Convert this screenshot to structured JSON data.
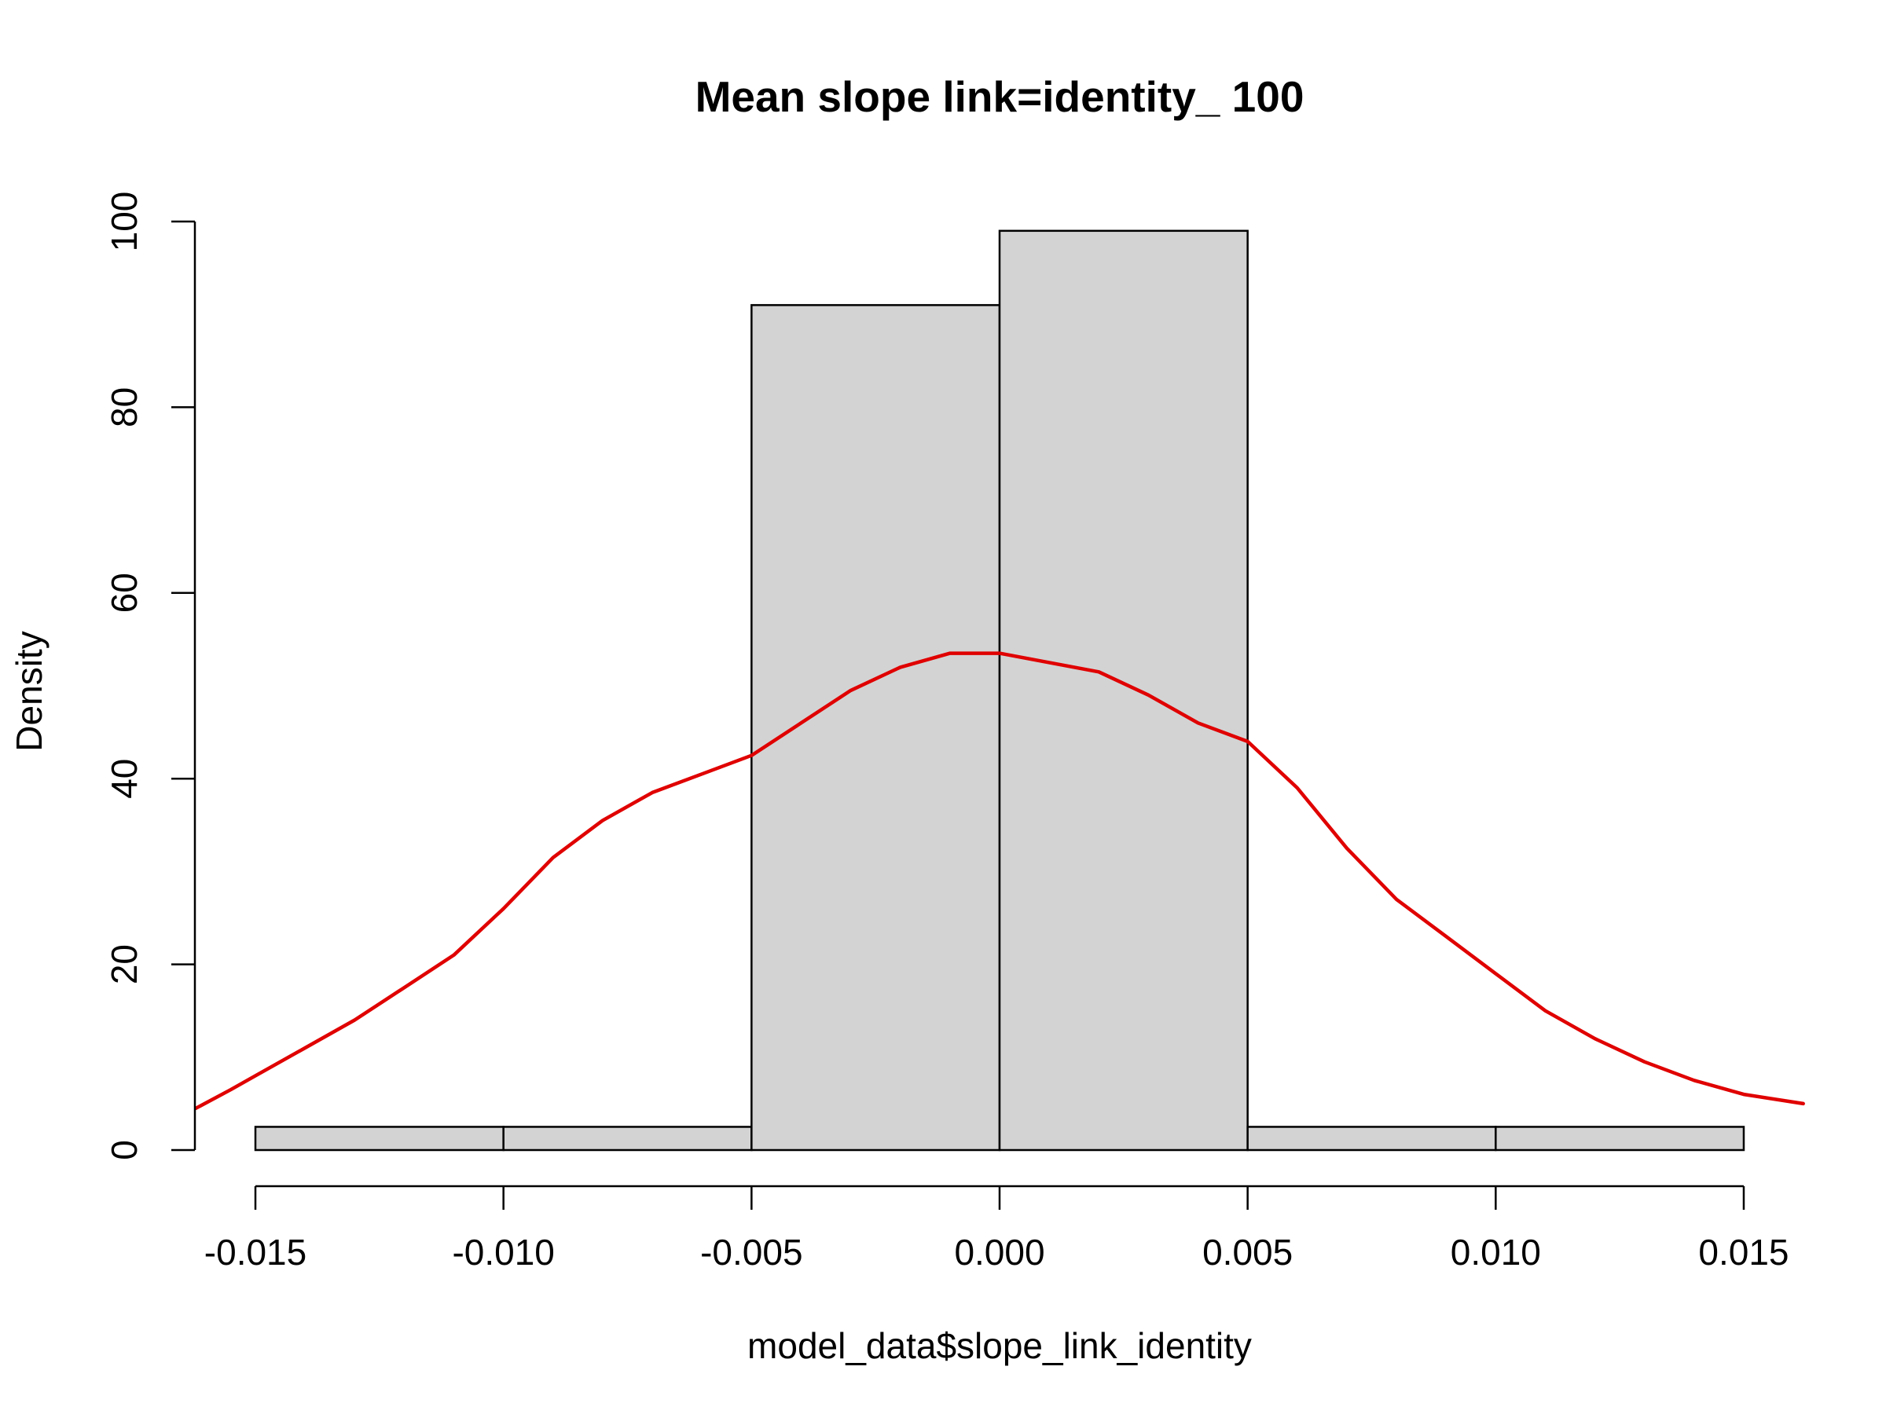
{
  "chart_data": {
    "type": "bar",
    "title": "Mean slope link=identity_ 100",
    "xlabel": "model_data$slope_link_identity",
    "ylabel": "Density",
    "xlim": [
      -0.01622,
      0.01622
    ],
    "ylim": [
      0,
      100
    ],
    "x_ticks": [
      -0.015,
      -0.01,
      -0.005,
      0.0,
      0.005,
      0.01,
      0.015
    ],
    "x_tick_labels": [
      "-0.015",
      "-0.010",
      "-0.005",
      "0.000",
      "0.005",
      "0.010",
      "0.015"
    ],
    "y_ticks": [
      0,
      20,
      40,
      60,
      80,
      100
    ],
    "y_tick_labels": [
      "0",
      "20",
      "40",
      "60",
      "80",
      "100"
    ],
    "bin_edges": [
      -0.015,
      -0.01,
      -0.005,
      0.0,
      0.005,
      0.01,
      0.015
    ],
    "values": [
      2.5,
      2.5,
      91,
      99,
      2.5,
      2.5
    ],
    "bar_color": "#d3d3d3",
    "density_curve": {
      "color": "#e00000",
      "x": [
        -0.0162,
        -0.0155,
        -0.015,
        -0.014,
        -0.013,
        -0.012,
        -0.011,
        -0.01,
        -0.009,
        -0.008,
        -0.007,
        -0.006,
        -0.005,
        -0.004,
        -0.003,
        -0.002,
        -0.001,
        0.0,
        0.001,
        0.002,
        0.003,
        0.004,
        0.005,
        0.006,
        0.007,
        0.008,
        0.009,
        0.01,
        0.011,
        0.012,
        0.013,
        0.014,
        0.015,
        0.0162
      ],
      "y": [
        4.5,
        6.5,
        8.0,
        11.0,
        14.0,
        17.5,
        21.0,
        26.0,
        31.5,
        35.5,
        38.5,
        40.5,
        42.5,
        46.0,
        49.5,
        52.0,
        53.5,
        53.5,
        52.5,
        51.5,
        49.0,
        46.0,
        44.0,
        39.0,
        32.5,
        27.0,
        23.0,
        19.0,
        15.0,
        12.0,
        9.5,
        7.5,
        6.0,
        5.0
      ]
    }
  }
}
